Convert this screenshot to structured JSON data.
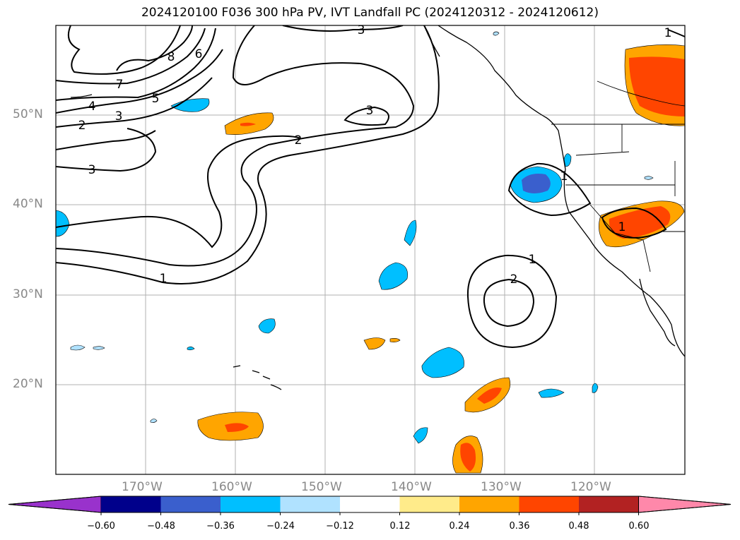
{
  "title": "2024120100 F036 300 hPa PV, IVT Landfall PC (2024120312 - 2024120612)",
  "axes": {
    "lat_labels": [
      "50°N",
      "40°N",
      "30°N",
      "20°N"
    ],
    "lon_labels": [
      "170°W",
      "160°W",
      "150°W",
      "140°W",
      "130°W",
      "120°W"
    ]
  },
  "contour_labels": [
    "3",
    "8",
    "6",
    "7",
    "5",
    "4",
    "3",
    "2",
    "3",
    "2",
    "3",
    "1",
    "1",
    "1",
    "2",
    "1",
    "1"
  ],
  "colorbar": {
    "ticks": [
      "−0.60",
      "−0.48",
      "−0.36",
      "−0.24",
      "−0.12",
      "0.12",
      "0.24",
      "0.36",
      "0.48",
      "0.60"
    ],
    "colors": [
      "#9932cc",
      "#00008b",
      "#3a5fcd",
      "#00bfff",
      "#b0e2ff",
      "#ffffff",
      "#ffeb8a",
      "#ffa500",
      "#ff4500",
      "#b22222",
      "#ff88aa"
    ]
  }
}
